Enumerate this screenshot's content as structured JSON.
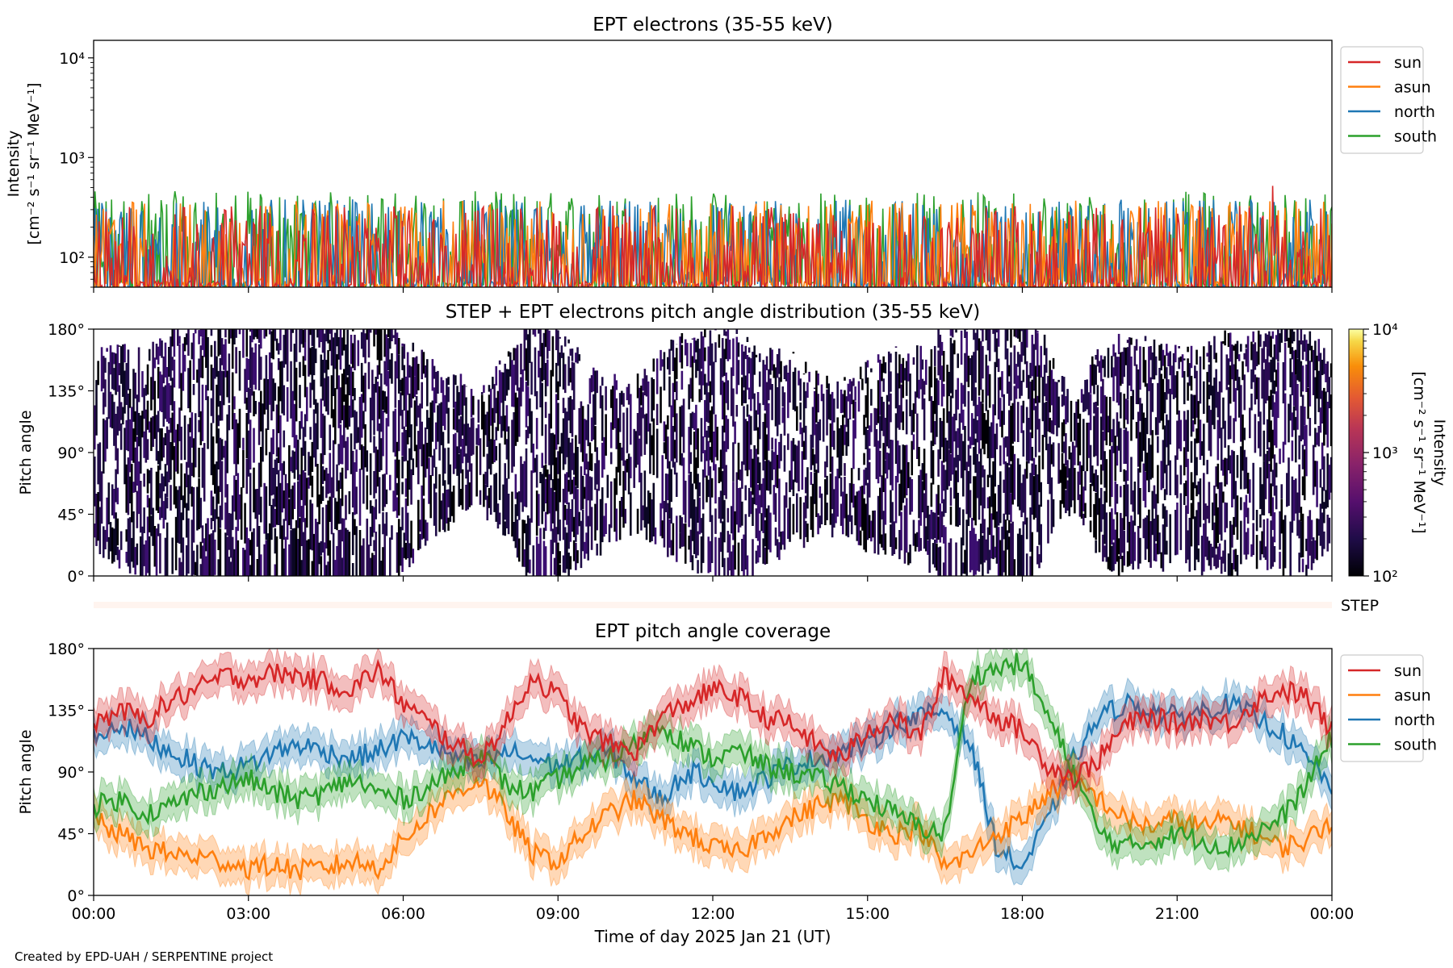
{
  "credit": "Created by EPD-UAH / SERPENTINE project",
  "chart_data": [
    {
      "type": "line",
      "title": "EPT electrons (35-55 keV)",
      "ylabel_line1": "Intensity",
      "ylabel_line2": "[cm⁻² s⁻¹ sr⁻¹ MeV⁻¹]",
      "yscale": "log",
      "ylim": [
        50,
        15000
      ],
      "ytick_values": [
        100,
        1000,
        10000
      ],
      "ytick_labels": [
        "10²",
        "10³",
        "10⁴"
      ],
      "xlim": [
        "00:00",
        "24:00"
      ],
      "legend_position": "outside-right-top",
      "series": [
        {
          "name": "sun",
          "color": "#d62728",
          "typical_range": [
            50,
            330
          ],
          "peak": {
            "x": "22:50",
            "y": 520
          }
        },
        {
          "name": "asun",
          "color": "#ff7f0e",
          "typical_range": [
            50,
            370
          ]
        },
        {
          "name": "north",
          "color": "#1f77b4",
          "typical_range": [
            50,
            380
          ]
        },
        {
          "name": "south",
          "color": "#2ca02c",
          "typical_range": [
            50,
            460
          ]
        }
      ]
    },
    {
      "type": "heatmap",
      "title": "STEP + EPT electrons pitch angle distribution (35-55 keV)",
      "ylabel": "Pitch angle",
      "ylim": [
        0,
        180
      ],
      "ytick_values": [
        0,
        45,
        90,
        135,
        180
      ],
      "ytick_labels": [
        "0°",
        "45°",
        "90°",
        "135°",
        "180°"
      ],
      "xlim": [
        "00:00",
        "24:00"
      ],
      "colorbar": {
        "label_line1": "Intensity",
        "label_line2": "[cm⁻² s⁻¹ sr⁻¹ MeV⁻¹]",
        "scale": "log",
        "range": [
          100,
          10000
        ],
        "tick_values": [
          100,
          1000,
          10000
        ],
        "tick_labels": [
          "10²",
          "10³",
          "10⁴"
        ],
        "colormap": "inferno"
      }
    },
    {
      "type": "bar",
      "label": "STEP",
      "color": "#fff4ef"
    },
    {
      "type": "line",
      "title": "EPT pitch angle coverage",
      "ylabel": "Pitch angle",
      "xlabel": "Time of day 2025 Jan 21 (UT)",
      "ylim": [
        0,
        180
      ],
      "ytick_values": [
        0,
        45,
        90,
        135,
        180
      ],
      "ytick_labels": [
        "0°",
        "45°",
        "90°",
        "135°",
        "180°"
      ],
      "xlim": [
        0,
        24
      ],
      "xtick_values": [
        0,
        3,
        6,
        9,
        12,
        15,
        18,
        21,
        24
      ],
      "xtick_labels": [
        "00:00",
        "03:00",
        "06:00",
        "09:00",
        "12:00",
        "15:00",
        "18:00",
        "21:00",
        "00:00"
      ],
      "legend_position": "outside-right-top",
      "band_halfwidth_deg": 12,
      "series": [
        {
          "name": "sun",
          "color": "#d62728",
          "x": [
            0,
            0.5,
            1,
            1.5,
            2,
            2.5,
            3,
            3.5,
            4,
            4.5,
            5,
            5.5,
            6,
            6.5,
            7,
            7.5,
            8,
            8.5,
            9,
            9.5,
            10,
            10.5,
            11,
            11.5,
            12,
            12.5,
            13,
            13.5,
            14,
            14.5,
            15,
            15.5,
            16,
            16.5,
            17,
            17.5,
            18,
            18.5,
            19,
            19.5,
            20,
            20.5,
            21,
            21.5,
            22,
            22.5,
            23,
            23.5,
            24
          ],
          "y": [
            125,
            135,
            128,
            142,
            150,
            160,
            158,
            162,
            160,
            155,
            150,
            165,
            140,
            125,
            110,
            100,
            125,
            160,
            145,
            120,
            110,
            105,
            130,
            140,
            150,
            145,
            130,
            125,
            110,
            100,
            120,
            130,
            115,
            160,
            145,
            130,
            120,
            95,
            85,
            100,
            125,
            130,
            125,
            130,
            125,
            140,
            150,
            145,
            120
          ]
        },
        {
          "name": "asun",
          "color": "#ff7f0e",
          "x": [
            0,
            0.5,
            1,
            1.5,
            2,
            2.5,
            3,
            3.5,
            4,
            4.5,
            5,
            5.5,
            6,
            6.5,
            7,
            7.5,
            8,
            8.5,
            9,
            9.5,
            10,
            10.5,
            11,
            11.5,
            12,
            12.5,
            13,
            13.5,
            14,
            14.5,
            15,
            15.5,
            16,
            16.5,
            17,
            17.5,
            18,
            18.5,
            19,
            19.5,
            20,
            20.5,
            21,
            21.5,
            22,
            22.5,
            23,
            23.5,
            24
          ],
          "y": [
            55,
            45,
            35,
            30,
            28,
            25,
            20,
            22,
            18,
            20,
            25,
            20,
            40,
            60,
            75,
            85,
            60,
            30,
            25,
            45,
            60,
            70,
            55,
            45,
            35,
            30,
            45,
            55,
            65,
            70,
            55,
            45,
            50,
            20,
            30,
            45,
            55,
            75,
            85,
            70,
            55,
            50,
            55,
            50,
            55,
            45,
            35,
            40,
            55
          ]
        },
        {
          "name": "north",
          "color": "#1f77b4",
          "x": [
            0,
            0.5,
            1,
            1.5,
            2,
            2.5,
            3,
            3.5,
            4,
            4.5,
            5,
            5.5,
            6,
            6.5,
            7,
            7.5,
            8,
            8.5,
            9,
            9.5,
            10,
            10.5,
            11,
            11.5,
            12,
            12.5,
            13,
            13.5,
            14,
            14.5,
            15,
            15.5,
            16,
            16.5,
            17,
            17.5,
            18,
            18.5,
            19,
            19.5,
            20,
            20.5,
            21,
            21.5,
            22,
            22.5,
            23,
            23.5,
            24
          ],
          "y": [
            115,
            125,
            115,
            105,
            95,
            90,
            95,
            105,
            110,
            105,
            100,
            105,
            115,
            110,
            100,
            95,
            105,
            100,
            95,
            100,
            105,
            85,
            70,
            90,
            85,
            75,
            85,
            95,
            100,
            105,
            110,
            125,
            130,
            135,
            110,
            35,
            20,
            55,
            100,
            130,
            140,
            135,
            130,
            135,
            140,
            130,
            120,
            100,
            80
          ]
        },
        {
          "name": "south",
          "color": "#2ca02c",
          "x": [
            0,
            0.5,
            1,
            1.5,
            2,
            2.5,
            3,
            3.5,
            4,
            4.5,
            5,
            5.5,
            6,
            6.5,
            7,
            7.5,
            8,
            8.5,
            9,
            9.5,
            10,
            10.5,
            11,
            11.5,
            12,
            12.5,
            13,
            13.5,
            14,
            14.5,
            15,
            15.5,
            16,
            16.5,
            17,
            17.5,
            18,
            18.5,
            19,
            19.5,
            20,
            20.5,
            21,
            21.5,
            22,
            22.5,
            23,
            23.5,
            24
          ],
          "y": [
            65,
            70,
            60,
            65,
            75,
            80,
            85,
            75,
            70,
            75,
            85,
            75,
            70,
            80,
            90,
            105,
            80,
            75,
            85,
            95,
            100,
            110,
            125,
            110,
            100,
            105,
            95,
            90,
            85,
            80,
            70,
            60,
            50,
            45,
            160,
            165,
            170,
            130,
            90,
            45,
            35,
            40,
            45,
            40,
            35,
            45,
            55,
            80,
            115
          ]
        }
      ]
    }
  ]
}
